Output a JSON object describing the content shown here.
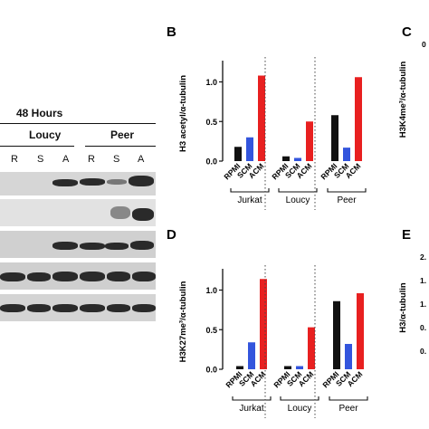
{
  "blot": {
    "time_label": "48 Hours",
    "groups": [
      "Loucy",
      "Peer"
    ],
    "lanes": [
      "R",
      "S",
      "A",
      "R",
      "S",
      "A"
    ]
  },
  "chart_data": [
    {
      "panel": "B",
      "type": "bar",
      "ylabel": "H3 acetyl/α-tubulin",
      "ylim": [
        0,
        1.2
      ],
      "yticks": [
        "0.0",
        "0.5",
        "1.0"
      ],
      "groups": [
        "Jurkat",
        "Loucy",
        "Peer"
      ],
      "categories": [
        "RPMI",
        "SCM",
        "ACM"
      ],
      "colors": [
        "#111111",
        "#3355dd",
        "#e82020"
      ],
      "values": [
        [
          0.18,
          0.3,
          1.08
        ],
        [
          0.06,
          0.04,
          0.5
        ],
        [
          0.58,
          0.17,
          1.06
        ]
      ]
    },
    {
      "panel": "D",
      "type": "bar",
      "ylabel": "H3K27me³/α-tubulin",
      "ylim": [
        0,
        1.2
      ],
      "yticks": [
        "0.0",
        "0.5",
        "1.0"
      ],
      "groups": [
        "Jurkat",
        "Loucy",
        "Peer"
      ],
      "categories": [
        "RPMI",
        "SCM",
        "ACM"
      ],
      "colors": [
        "#111111",
        "#3355dd",
        "#e82020"
      ],
      "values": [
        [
          0.04,
          0.34,
          1.14
        ],
        [
          0.04,
          0.04,
          0.53
        ],
        [
          0.86,
          0.32,
          0.96
        ]
      ]
    },
    {
      "panel": "C",
      "type": "bar",
      "ylabel": "H3K4me³/α-tubulin",
      "yticks": [
        "0"
      ]
    },
    {
      "panel": "E",
      "type": "bar",
      "ylabel": "H3/α-tubulin",
      "yticks": [
        "2.",
        "1.",
        "1.",
        "0.",
        "0."
      ]
    }
  ]
}
